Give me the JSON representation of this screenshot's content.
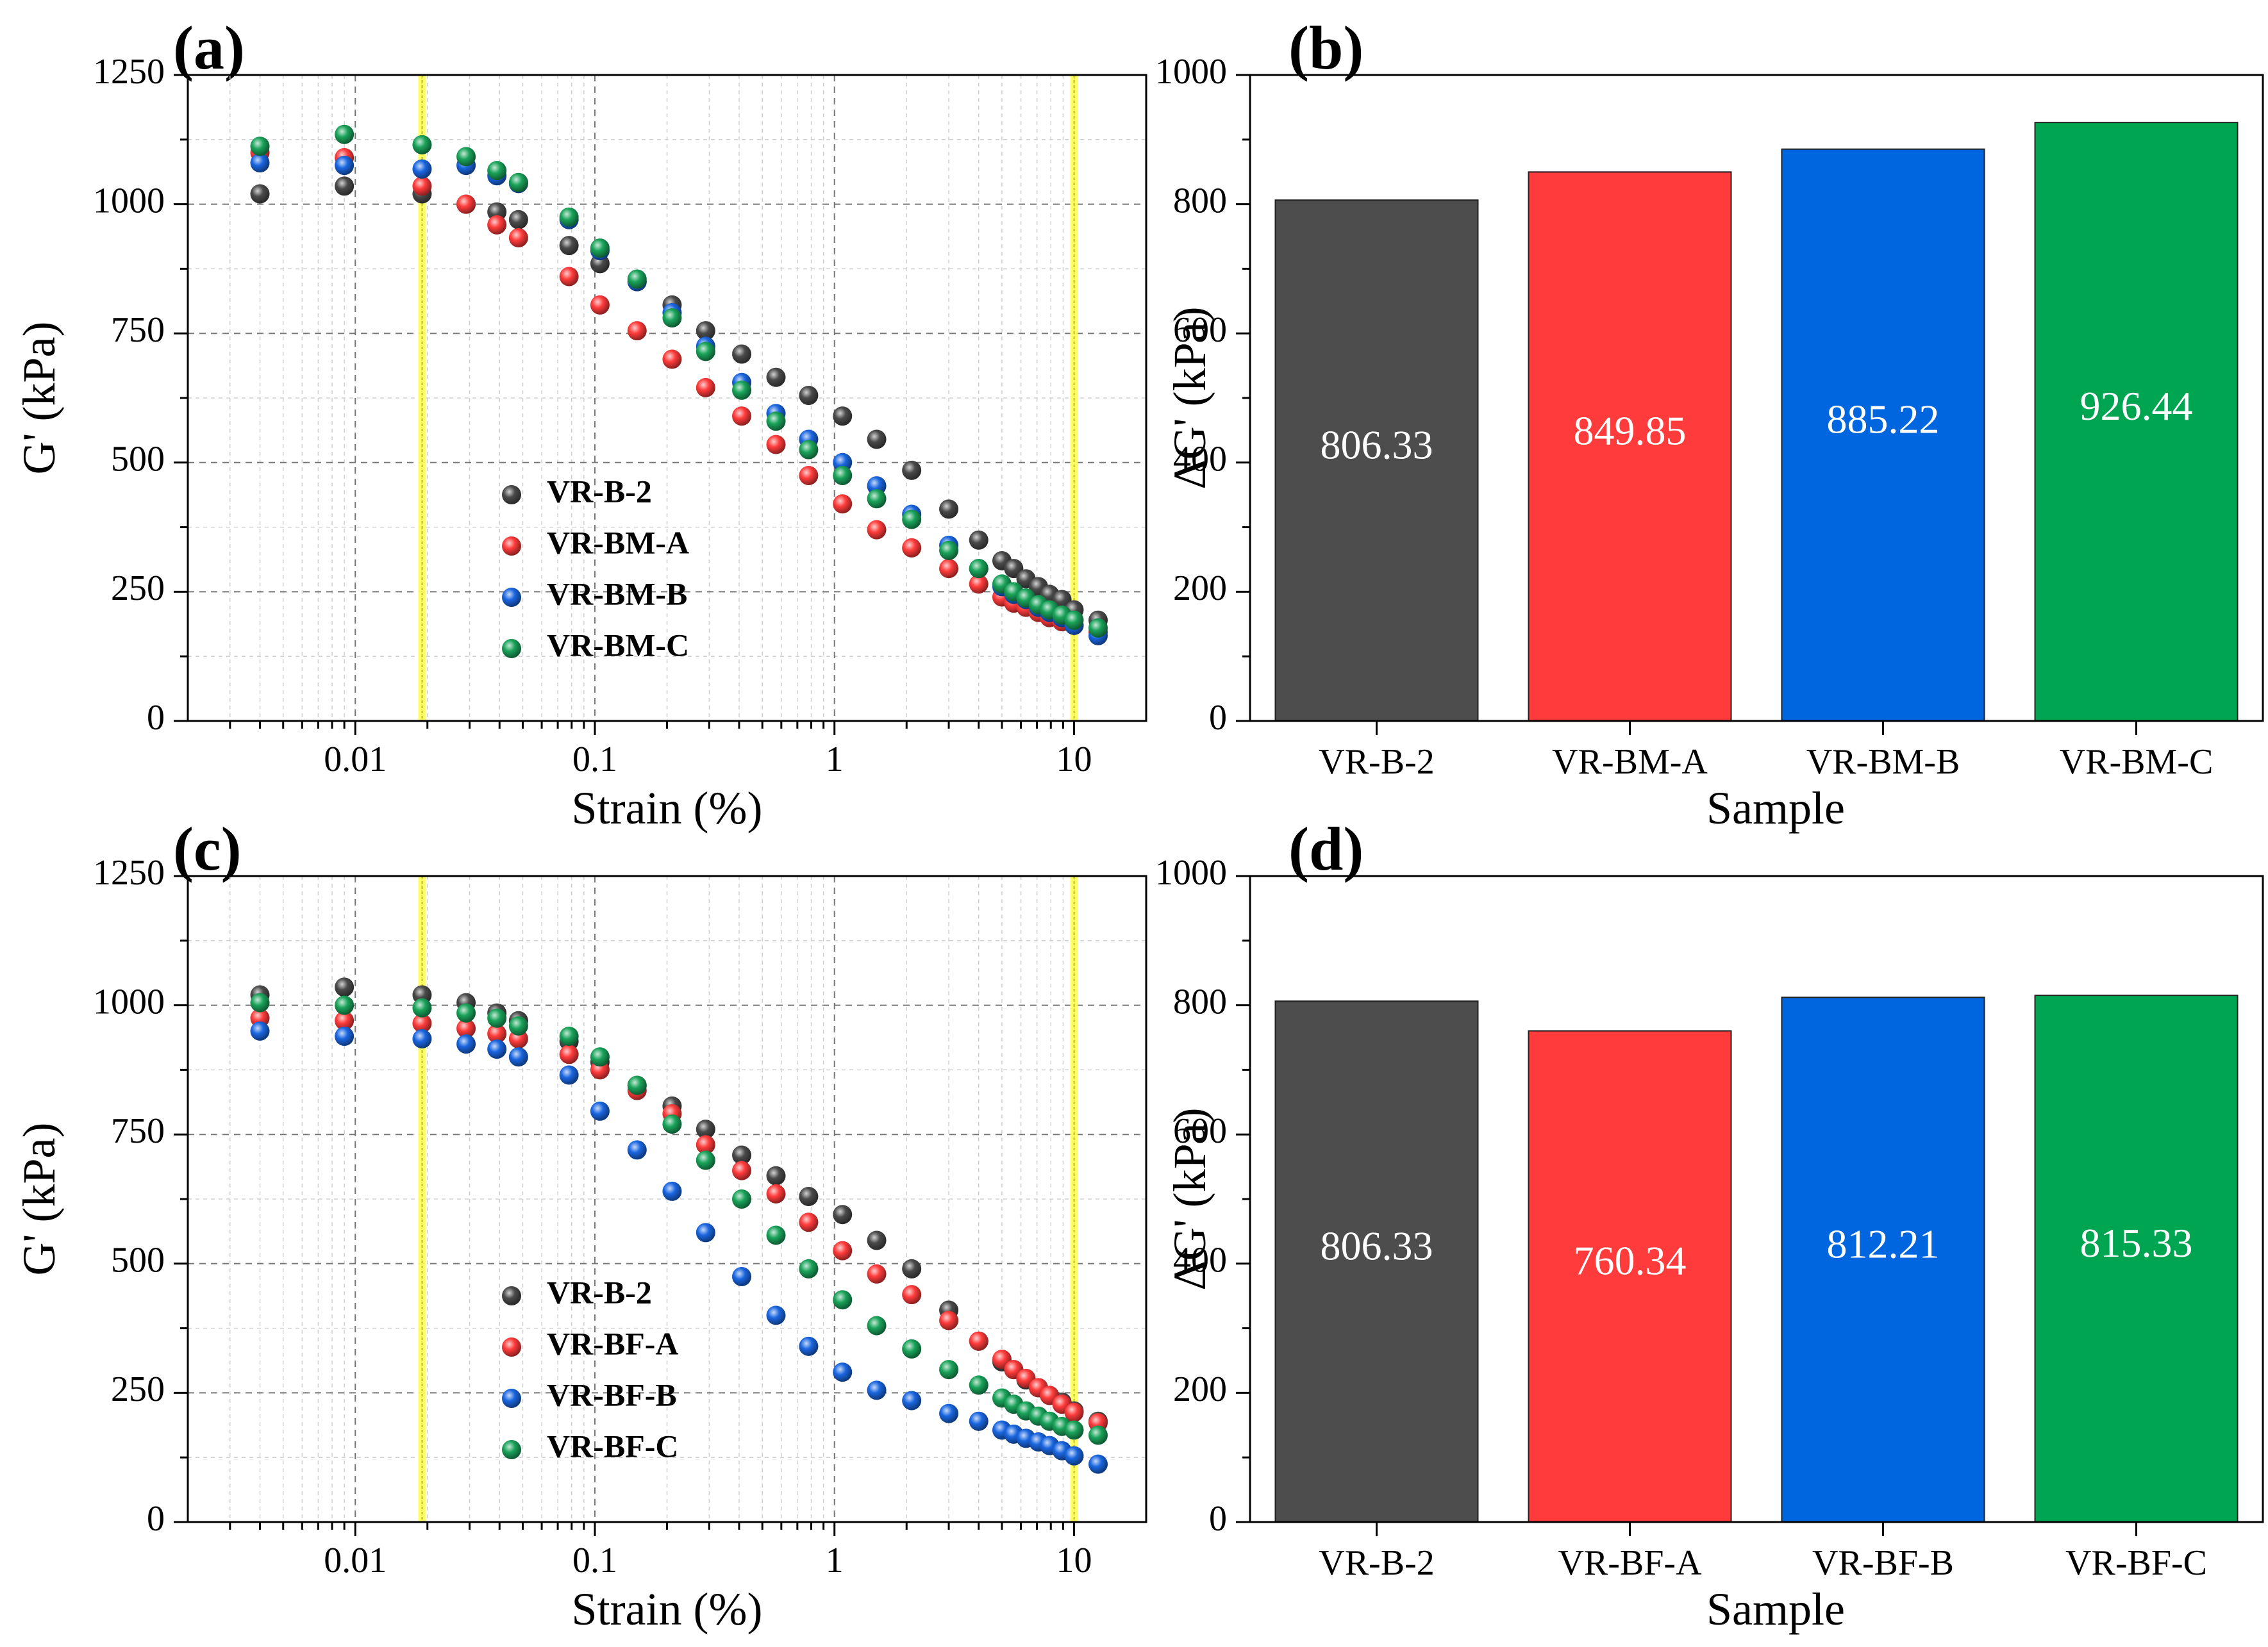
{
  "chart_data": [
    {
      "panel": "(a)",
      "type": "scatter",
      "xscale": "log",
      "xlabel": "Strain (%)",
      "ylabel": "G' (kPa)",
      "xlim": [
        0.002,
        20
      ],
      "ylim": [
        0,
        1250
      ],
      "xticks": [
        "0.01",
        "0.1",
        "1",
        "10"
      ],
      "yticks": [
        "0",
        "250",
        "500",
        "750",
        "1000",
        "1250"
      ],
      "grid": true,
      "legend": "bottom-center",
      "highlight_lines": [
        0.019,
        10
      ],
      "series": [
        {
          "name": "VR-B-2",
          "color": "#4a4a4a",
          "x": [
            0.004,
            0.009,
            0.019,
            0.029,
            0.039,
            0.048,
            0.078,
            0.105,
            0.15,
            0.21,
            0.29,
            0.41,
            0.57,
            0.78,
            1.08,
            1.5,
            2.1,
            3.0,
            4.0,
            5.0,
            5.6,
            6.3,
            7.1,
            7.9,
            8.9,
            10.0,
            12.6
          ],
          "y": [
            1020,
            1035,
            1020,
            1000,
            985,
            970,
            920,
            885,
            850,
            805,
            755,
            710,
            665,
            630,
            590,
            545,
            485,
            410,
            350,
            310,
            295,
            275,
            260,
            245,
            235,
            215,
            195
          ]
        },
        {
          "name": "VR-BM-A",
          "color": "#ff3b3b",
          "x": [
            0.004,
            0.009,
            0.019,
            0.029,
            0.039,
            0.048,
            0.078,
            0.105,
            0.15,
            0.21,
            0.29,
            0.41,
            0.57,
            0.78,
            1.08,
            1.5,
            2.1,
            3.0,
            4.0,
            5.0,
            5.6,
            6.3,
            7.1,
            7.9,
            8.9,
            10.0,
            12.6
          ],
          "y": [
            1100,
            1090,
            1035,
            1000,
            960,
            935,
            860,
            805,
            755,
            700,
            645,
            590,
            535,
            475,
            420,
            370,
            335,
            295,
            265,
            240,
            228,
            220,
            210,
            200,
            192,
            185,
            172
          ]
        },
        {
          "name": "VR-BM-B",
          "color": "#1a66e0",
          "x": [
            0.004,
            0.009,
            0.019,
            0.029,
            0.039,
            0.048,
            0.078,
            0.105,
            0.15,
            0.21,
            0.29,
            0.41,
            0.57,
            0.78,
            1.08,
            1.5,
            2.1,
            3.0,
            4.0,
            5.0,
            5.6,
            6.3,
            7.1,
            7.9,
            8.9,
            10.0,
            12.6
          ],
          "y": [
            1080,
            1075,
            1068,
            1075,
            1055,
            1040,
            970,
            910,
            850,
            790,
            725,
            655,
            595,
            545,
            500,
            455,
            400,
            340,
            295,
            260,
            245,
            235,
            220,
            210,
            200,
            185,
            165
          ]
        },
        {
          "name": "VR-BM-C",
          "color": "#1aa35a",
          "x": [
            0.004,
            0.009,
            0.019,
            0.029,
            0.039,
            0.048,
            0.078,
            0.105,
            0.15,
            0.21,
            0.29,
            0.41,
            0.57,
            0.78,
            1.08,
            1.5,
            2.1,
            3.0,
            4.0,
            5.0,
            5.6,
            6.3,
            7.1,
            7.9,
            8.9,
            10.0,
            12.6
          ],
          "y": [
            1112,
            1135,
            1115,
            1092,
            1065,
            1042,
            975,
            915,
            855,
            780,
            715,
            640,
            580,
            525,
            475,
            430,
            390,
            330,
            295,
            265,
            250,
            238,
            225,
            215,
            205,
            195,
            180
          ]
        }
      ]
    },
    {
      "panel": "(b)",
      "type": "bar",
      "xlabel": "Sample",
      "ylabel": "ΔG' (kPa)",
      "ylim": [
        0,
        1000
      ],
      "yticks": [
        "0",
        "200",
        "400",
        "600",
        "800",
        "1000"
      ],
      "categories": [
        "VR-B-2",
        "VR-BM-A",
        "VR-BM-B",
        "VR-BM-C"
      ],
      "values": [
        806.33,
        849.85,
        885.22,
        926.44
      ],
      "labels": [
        "806.33",
        "849.85",
        "885.22",
        "926.44"
      ],
      "colors": [
        "#4d4d4d",
        "#ff3b3b",
        "#0066e0",
        "#00a551"
      ]
    },
    {
      "panel": "(c)",
      "type": "scatter",
      "xscale": "log",
      "xlabel": "Strain (%)",
      "ylabel": "G' (kPa)",
      "xlim": [
        0.002,
        20
      ],
      "ylim": [
        0,
        1250
      ],
      "xticks": [
        "0.01",
        "0.1",
        "1",
        "10"
      ],
      "yticks": [
        "0",
        "250",
        "500",
        "750",
        "1000",
        "1250"
      ],
      "grid": true,
      "legend": "bottom-center",
      "highlight_lines": [
        0.019,
        10
      ],
      "series": [
        {
          "name": "VR-B-2",
          "color": "#4a4a4a",
          "x": [
            0.004,
            0.009,
            0.019,
            0.029,
            0.039,
            0.048,
            0.078,
            0.105,
            0.15,
            0.21,
            0.29,
            0.41,
            0.57,
            0.78,
            1.08,
            1.5,
            2.1,
            3.0,
            4.0,
            5.0,
            5.6,
            6.3,
            7.1,
            7.9,
            8.9,
            10.0,
            12.6
          ],
          "y": [
            1020,
            1035,
            1020,
            1005,
            985,
            970,
            930,
            890,
            845,
            805,
            760,
            710,
            670,
            630,
            595,
            545,
            490,
            410,
            350,
            310,
            295,
            275,
            260,
            245,
            232,
            215,
            195
          ]
        },
        {
          "name": "VR-BF-A",
          "color": "#ff3b3b",
          "x": [
            0.004,
            0.009,
            0.019,
            0.029,
            0.039,
            0.048,
            0.078,
            0.105,
            0.15,
            0.21,
            0.29,
            0.41,
            0.57,
            0.78,
            1.08,
            1.5,
            2.1,
            3.0,
            4.0,
            5.0,
            5.6,
            6.3,
            7.1,
            7.9,
            8.9,
            10.0,
            12.6
          ],
          "y": [
            975,
            970,
            965,
            955,
            945,
            935,
            905,
            875,
            835,
            790,
            730,
            680,
            635,
            580,
            525,
            480,
            440,
            390,
            350,
            315,
            295,
            278,
            260,
            245,
            228,
            212,
            192
          ]
        },
        {
          "name": "VR-BF-B",
          "color": "#1a66e0",
          "x": [
            0.004,
            0.009,
            0.019,
            0.029,
            0.039,
            0.048,
            0.078,
            0.105,
            0.15,
            0.21,
            0.29,
            0.41,
            0.57,
            0.78,
            1.08,
            1.5,
            2.1,
            3.0,
            4.0,
            5.0,
            5.6,
            6.3,
            7.1,
            7.9,
            8.9,
            10.0,
            12.6
          ],
          "y": [
            950,
            940,
            935,
            925,
            915,
            900,
            865,
            795,
            720,
            640,
            560,
            475,
            400,
            340,
            290,
            255,
            235,
            210,
            195,
            178,
            170,
            162,
            155,
            148,
            138,
            128,
            112
          ]
        },
        {
          "name": "VR-BF-C",
          "color": "#1aa35a",
          "x": [
            0.004,
            0.009,
            0.019,
            0.029,
            0.039,
            0.048,
            0.078,
            0.105,
            0.15,
            0.21,
            0.29,
            0.41,
            0.57,
            0.78,
            1.08,
            1.5,
            2.1,
            3.0,
            4.0,
            5.0,
            5.6,
            6.3,
            7.1,
            7.9,
            8.9,
            10.0,
            12.6
          ],
          "y": [
            1005,
            1000,
            995,
            985,
            975,
            960,
            940,
            900,
            845,
            770,
            700,
            625,
            555,
            490,
            430,
            380,
            335,
            295,
            265,
            240,
            228,
            215,
            205,
            195,
            185,
            178,
            168
          ]
        }
      ]
    },
    {
      "panel": "(d)",
      "type": "bar",
      "xlabel": "Sample",
      "ylabel": "ΔG' (kPa)",
      "ylim": [
        0,
        1000
      ],
      "yticks": [
        "0",
        "200",
        "400",
        "600",
        "800",
        "1000"
      ],
      "categories": [
        "VR-B-2",
        "VR-BF-A",
        "VR-BF-B",
        "VR-BF-C"
      ],
      "values": [
        806.33,
        760.34,
        812.21,
        815.33
      ],
      "labels": [
        "806.33",
        "760.34",
        "812.21",
        "815.33"
      ],
      "colors": [
        "#4d4d4d",
        "#ff3b3b",
        "#0066e0",
        "#00a551"
      ]
    }
  ]
}
